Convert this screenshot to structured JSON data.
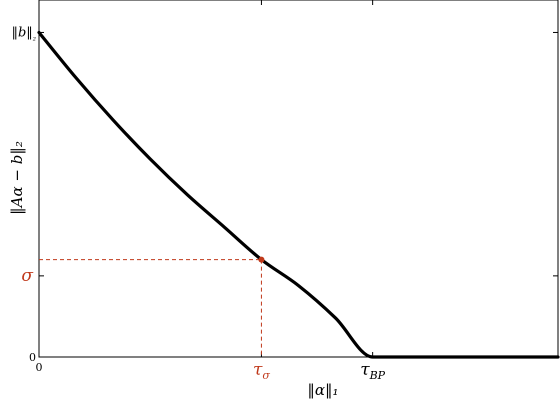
{
  "chart_data": {
    "type": "line",
    "xlabel": "‖α‖₁",
    "ylabel": "‖Aα − b‖₂",
    "x_ticks": [
      {
        "value": 0,
        "label": "0"
      },
      {
        "value": 0.6,
        "label": "τσ"
      },
      {
        "value": 0.9,
        "label": "τBP"
      }
    ],
    "y_ticks": [
      {
        "value": 0,
        "label": "0"
      },
      {
        "value": 0.25,
        "label": "σ"
      },
      {
        "value": 1.0,
        "label": "‖b‖₂"
      }
    ],
    "xlim": [
      0,
      1.4
    ],
    "ylim": [
      0,
      1.1
    ],
    "grid": false,
    "series": [
      {
        "x": [
          0,
          0.1,
          0.2,
          0.3,
          0.4,
          0.5,
          0.6,
          0.7,
          0.8,
          0.9,
          1.0,
          1.1,
          1.2,
          1.3,
          1.4
        ],
        "y": [
          1.0,
          0.86,
          0.73,
          0.61,
          0.5,
          0.4,
          0.3,
          0.22,
          0.12,
          0.0,
          0.0,
          0.0,
          0.0,
          0.0,
          0.0
        ],
        "color": "#000000"
      }
    ],
    "annotations": [
      {
        "type": "point",
        "x": 0.6,
        "y": 0.3,
        "color": "#c0391b"
      },
      {
        "type": "dashed-guide",
        "x": 0.6,
        "y": 0.3,
        "color": "#c0391b"
      }
    ]
  }
}
